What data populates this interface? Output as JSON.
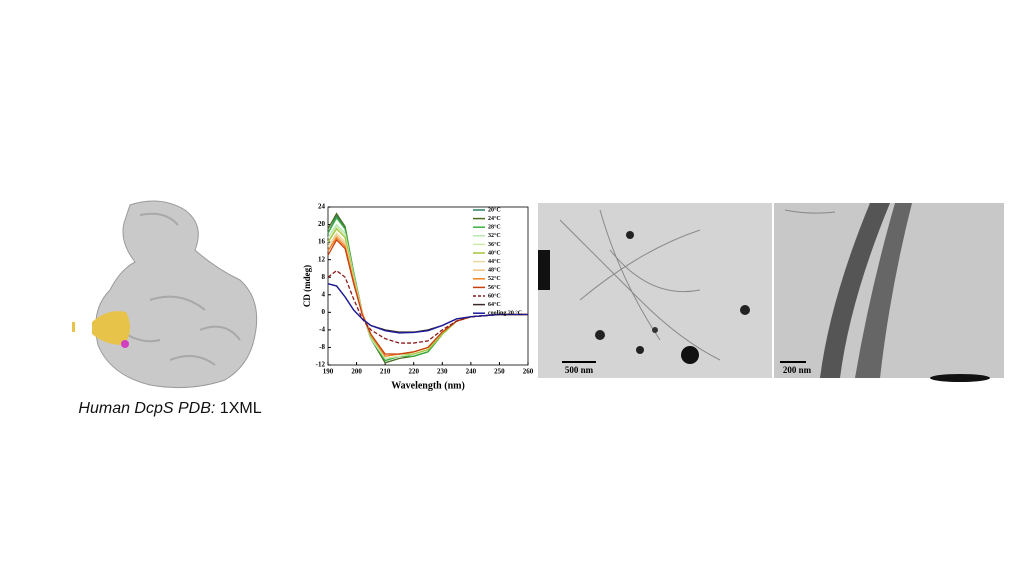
{
  "caption": {
    "italic": "Human DcpS PDB:",
    "normal": "1XML"
  },
  "tem": {
    "left_scale": "500 nm",
    "right_scale": "200 nm"
  },
  "chart_data": {
    "type": "line",
    "xlabel": "Wavelength (nm)",
    "ylabel": "CD (mdeg)",
    "x": [
      190,
      193,
      196,
      199,
      202,
      205,
      210,
      215,
      220,
      225,
      230,
      235,
      240,
      250,
      260
    ],
    "xlim": [
      190,
      260
    ],
    "xticks": [
      190,
      200,
      210,
      220,
      230,
      240,
      250,
      260
    ],
    "ylim": [
      -12,
      24
    ],
    "yticks": [
      -12,
      -8,
      -4,
      0,
      4,
      8,
      12,
      16,
      20,
      24
    ],
    "series": [
      {
        "name": "20°C",
        "color": "#2a7f62",
        "values": [
          18,
          22,
          19,
          9,
          0,
          -6,
          -11,
          -10,
          -10,
          -9,
          -5,
          -2,
          -1,
          -0.5,
          -0.5
        ]
      },
      {
        "name": "24°C",
        "color": "#4b6b1f",
        "values": [
          19,
          22.5,
          19.5,
          9,
          0,
          -6,
          -11.5,
          -10.5,
          -10,
          -9,
          -5,
          -2,
          -1,
          -0.5,
          -0.5
        ]
      },
      {
        "name": "28°C",
        "color": "#3cb043",
        "values": [
          18,
          21.5,
          19,
          9,
          0,
          -6,
          -11,
          -10,
          -10,
          -9,
          -5,
          -2,
          -1,
          -0.5,
          -0.5
        ]
      },
      {
        "name": "32°C",
        "color": "#b8e6b0",
        "values": [
          17,
          20,
          18,
          8.5,
          0,
          -6,
          -10.5,
          -10,
          -9.5,
          -8.5,
          -5,
          -2,
          -1,
          -0.5,
          -0.5
        ]
      },
      {
        "name": "36°C",
        "color": "#cde8a8",
        "values": [
          16,
          19.5,
          17.5,
          8,
          0,
          -5.5,
          -10.5,
          -10,
          -9.5,
          -8.5,
          -5,
          -2,
          -1,
          -0.5,
          -0.5
        ]
      },
      {
        "name": "40°C",
        "color": "#a4c639",
        "values": [
          16,
          19,
          17,
          8,
          0,
          -5.5,
          -10,
          -9.5,
          -9.5,
          -8.5,
          -5,
          -2,
          -1,
          -0.5,
          -0.5
        ]
      },
      {
        "name": "44°C",
        "color": "#e8d8a0",
        "values": [
          15,
          18,
          16,
          7.5,
          0,
          -5,
          -10,
          -9.5,
          -9,
          -8,
          -4.5,
          -2,
          -1,
          -0.5,
          -0.5
        ]
      },
      {
        "name": "48°C",
        "color": "#f0c080",
        "values": [
          14,
          17.5,
          15.5,
          7,
          0,
          -5,
          -10,
          -9.5,
          -9,
          -8,
          -4.5,
          -2,
          -1,
          -0.5,
          -0.5
        ]
      },
      {
        "name": "52°C",
        "color": "#f08020",
        "values": [
          14,
          17,
          15,
          7,
          -0.5,
          -5,
          -10,
          -9.5,
          -9,
          -8,
          -4.5,
          -2,
          -1,
          -0.5,
          -0.5
        ]
      },
      {
        "name": "56°C",
        "color": "#c84010",
        "values": [
          13,
          16.5,
          14.5,
          6.5,
          -0.5,
          -5,
          -9.5,
          -9.5,
          -9,
          -8,
          -4.5,
          -2,
          -1,
          -0.5,
          -0.5
        ]
      },
      {
        "name": "60°C",
        "color": "#8b1a1a",
        "dashed": true,
        "values": [
          8,
          9.5,
          8,
          3,
          -1.5,
          -4,
          -6,
          -7,
          -7,
          -6.5,
          -4,
          -2,
          -1,
          -0.5,
          -0.5
        ]
      },
      {
        "name": "64°C",
        "color": "#3a2a2a",
        "values": [
          6.5,
          6,
          3.5,
          0.5,
          -1.5,
          -3,
          -4,
          -4.5,
          -4.5,
          -4,
          -3,
          -1.5,
          -1,
          -0.5,
          -0.5
        ]
      },
      {
        "name": "cooling 20 °C",
        "color": "#1a1aa0",
        "values": [
          6.5,
          6,
          3.5,
          0.5,
          -1.5,
          -3,
          -4.2,
          -4.7,
          -4.6,
          -4.2,
          -3,
          -1.5,
          -1,
          -0.5,
          -0.5
        ]
      }
    ]
  }
}
